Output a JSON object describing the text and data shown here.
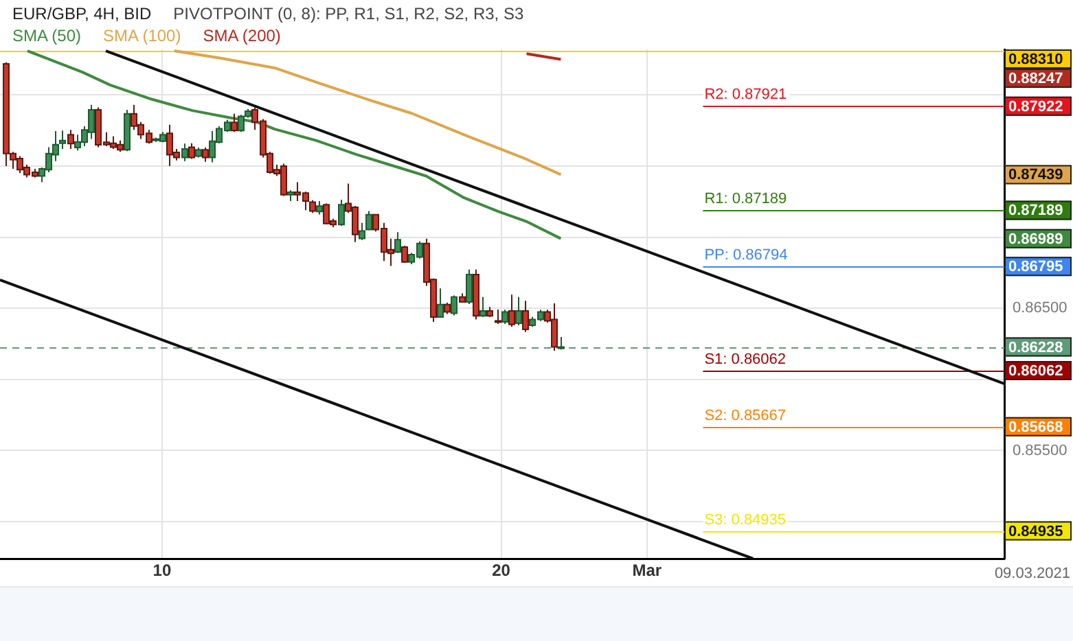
{
  "chart_data": {
    "type": "candlestick",
    "title": "EUR/GBP, 4H, BID",
    "subtitle": "PIVOTPOINT (0, 8): PP, R1, S1, R2, S2, R3, S3",
    "x": [
      5.38,
      5.59,
      5.8,
      6.01,
      6.22,
      6.43,
      6.64,
      6.85,
      7.06,
      7.27,
      7.48,
      7.69,
      7.9,
      8.11,
      8.32,
      8.53,
      8.74,
      8.95,
      9.16,
      9.37,
      9.58,
      9.79,
      10.0,
      10.21,
      10.42,
      10.63,
      10.84,
      11.05,
      11.26,
      11.47,
      11.68,
      11.89,
      12.1,
      12.31,
      12.52,
      12.73,
      12.94,
      13.15,
      13.36,
      13.57,
      13.78,
      13.99,
      14.2,
      14.41,
      14.62,
      14.83,
      15.04,
      15.25,
      15.46,
      15.67,
      15.88,
      16.09,
      16.3,
      16.51,
      16.72,
      16.93,
      17.14,
      17.35,
      17.56,
      17.77,
      17.98,
      18.19,
      18.4,
      18.61,
      18.82,
      19.03,
      19.24,
      19.45,
      19.66,
      19.87,
      20.08,
      20.29,
      20.5,
      20.71,
      20.92,
      21.13,
      21.34,
      21.55,
      21.76
    ],
    "ohlc": [
      [
        0.88219,
        0.8823,
        0.875,
        0.87588
      ],
      [
        0.87588,
        0.876,
        0.8748,
        0.87544
      ],
      [
        0.87553,
        0.8757,
        0.8745,
        0.87474
      ],
      [
        0.8749,
        0.8751,
        0.8742,
        0.8744
      ],
      [
        0.87456,
        0.8748,
        0.8742,
        0.8743
      ],
      [
        0.8743,
        0.8749,
        0.87386,
        0.8748
      ],
      [
        0.87474,
        0.87632,
        0.87456,
        0.87588
      ],
      [
        0.87579,
        0.87746,
        0.87535,
        0.8765
      ],
      [
        0.8766,
        0.8775,
        0.8762,
        0.8768
      ],
      [
        0.8772,
        0.87754,
        0.8762,
        0.87658
      ],
      [
        0.8763,
        0.8772,
        0.8761,
        0.8767
      ],
      [
        0.87667,
        0.8778,
        0.8764,
        0.87754
      ],
      [
        0.87737,
        0.8793,
        0.8769,
        0.87895
      ],
      [
        0.87895,
        0.87912,
        0.87632,
        0.87649
      ],
      [
        0.87667,
        0.87737,
        0.8764,
        0.8765
      ],
      [
        0.8766,
        0.8771,
        0.8762,
        0.87632
      ],
      [
        0.8765,
        0.8768,
        0.876,
        0.87614
      ],
      [
        0.87614,
        0.87895,
        0.87605,
        0.87868
      ],
      [
        0.87868,
        0.8793,
        0.87754,
        0.87781
      ],
      [
        0.8779,
        0.8781,
        0.8769,
        0.8772
      ],
      [
        0.8773,
        0.87754,
        0.87658,
        0.87667
      ],
      [
        0.87684,
        0.877,
        0.8767,
        0.8769
      ],
      [
        0.87675,
        0.8774,
        0.87667,
        0.8772
      ],
      [
        0.8773,
        0.8779,
        0.875,
        0.87579
      ],
      [
        0.87596,
        0.8762,
        0.8754,
        0.8756
      ],
      [
        0.8756,
        0.87658,
        0.87535,
        0.8762
      ],
      [
        0.87632,
        0.8766,
        0.8755,
        0.8756
      ],
      [
        0.8757,
        0.8763,
        0.8756,
        0.87614
      ],
      [
        0.87614,
        0.8763,
        0.8753,
        0.8756
      ],
      [
        0.8756,
        0.87746,
        0.87526,
        0.87675
      ],
      [
        0.87667,
        0.8778,
        0.8766,
        0.87763
      ],
      [
        0.8775,
        0.87825,
        0.8774,
        0.87807
      ],
      [
        0.87807,
        0.87868,
        0.8774,
        0.8775
      ],
      [
        0.8775,
        0.8786,
        0.8774,
        0.8785
      ],
      [
        0.8785,
        0.879,
        0.8784,
        0.87886
      ],
      [
        0.87895,
        0.87912,
        0.87754,
        0.87807
      ],
      [
        0.87816,
        0.8783,
        0.8756,
        0.87579
      ],
      [
        0.87588,
        0.876,
        0.87447,
        0.87456
      ],
      [
        0.87474,
        0.87509,
        0.8743,
        0.87447
      ],
      [
        0.875,
        0.87517,
        0.8729,
        0.87298
      ],
      [
        0.87298,
        0.8733,
        0.87254,
        0.87316
      ],
      [
        0.87316,
        0.87386,
        0.87254,
        0.87298
      ],
      [
        0.8731,
        0.8732,
        0.8719,
        0.87254
      ],
      [
        0.87246,
        0.8726,
        0.8717,
        0.87184
      ],
      [
        0.8718,
        0.87254,
        0.8716,
        0.87219
      ],
      [
        0.87228,
        0.87237,
        0.8709,
        0.87096
      ],
      [
        0.87114,
        0.8713,
        0.8707,
        0.87088
      ],
      [
        0.87088,
        0.87263,
        0.8708,
        0.87228
      ],
      [
        0.87237,
        0.87377,
        0.8717,
        0.87184
      ],
      [
        0.8721,
        0.8722,
        0.86965,
        0.87018
      ],
      [
        0.86991,
        0.871,
        0.8698,
        0.87044
      ],
      [
        0.87053,
        0.87184,
        0.8705,
        0.87158
      ],
      [
        0.87158,
        0.8716,
        0.8704,
        0.87053
      ],
      [
        0.87061,
        0.871,
        0.86833,
        0.86895
      ],
      [
        0.86912,
        0.8699,
        0.86798,
        0.86886
      ],
      [
        0.86895,
        0.87035,
        0.8689,
        0.86982
      ],
      [
        0.8693,
        0.8694,
        0.8682,
        0.86825
      ],
      [
        0.86825,
        0.8689,
        0.8681,
        0.86877
      ],
      [
        0.8686,
        0.8697,
        0.8685,
        0.86956
      ],
      [
        0.86956,
        0.8699,
        0.86658,
        0.86684
      ],
      [
        0.86702,
        0.8671,
        0.86404,
        0.86438
      ],
      [
        0.86438,
        0.8664,
        0.86438,
        0.86526
      ],
      [
        0.86526,
        0.8654,
        0.8646,
        0.86474
      ],
      [
        0.86465,
        0.8659,
        0.8645,
        0.86579
      ],
      [
        0.86579,
        0.86605,
        0.8654,
        0.86544
      ],
      [
        0.86544,
        0.86772,
        0.8653,
        0.86737
      ],
      [
        0.86737,
        0.86772,
        0.86421,
        0.86447
      ],
      [
        0.86447,
        0.86579,
        0.8644,
        0.86482
      ],
      [
        0.86482,
        0.86509,
        0.86438,
        0.86447
      ],
      [
        0.86412,
        0.86491,
        0.8639,
        0.86404
      ],
      [
        0.86404,
        0.8649,
        0.8639,
        0.86474
      ],
      [
        0.86482,
        0.86596,
        0.8637,
        0.86386
      ],
      [
        0.86395,
        0.86579,
        0.8638,
        0.86482
      ],
      [
        0.86482,
        0.86553,
        0.86333,
        0.86351
      ],
      [
        0.8638,
        0.8644,
        0.8637,
        0.86421
      ],
      [
        0.86421,
        0.8649,
        0.8641,
        0.86474
      ],
      [
        0.86474,
        0.8649,
        0.864,
        0.86412
      ],
      [
        0.86421,
        0.86535,
        0.86202,
        0.86228
      ],
      [
        0.86219,
        0.86298,
        0.8621,
        0.86228
      ]
    ],
    "series": [
      {
        "type": "line",
        "name": "SMA (50)",
        "color": "#3f8a3f",
        "x": [
          6.03,
          7.65,
          8.47,
          9.69,
          10.9,
          12.0,
          12.79,
          13.32,
          14.54,
          15.75,
          16.97,
          17.79,
          18.88,
          19.93,
          20.75,
          21.76
        ],
        "values": [
          0.8831,
          0.8816,
          0.8807,
          0.8797,
          0.8789,
          0.8784,
          0.8781,
          0.8776,
          0.8768,
          0.8758,
          0.8749,
          0.8743,
          0.8728,
          0.8718,
          0.8711,
          0.8699
        ]
      },
      {
        "type": "line",
        "name": "SMA (100)",
        "color": "#e0a548",
        "x": [
          10.36,
          11.7,
          13.32,
          14.54,
          16.17,
          17.37,
          19.01,
          20.63,
          21.76
        ],
        "values": [
          0.8831,
          0.8826,
          0.8819,
          0.8809,
          0.8796,
          0.8787,
          0.8771,
          0.8756,
          0.8744
        ]
      },
      {
        "type": "line",
        "name": "SMA (200)",
        "color": "#b22a1e",
        "x": [
          20.75,
          21.76
        ],
        "values": [
          0.8829,
          0.8825
        ]
      },
      {
        "type": "line",
        "color": "#111111",
        "x": [
          8.34,
          34.84
        ],
        "values": [
          0.8831,
          0.8597
        ]
      },
      {
        "type": "line",
        "color": "#111111",
        "x": [
          5.22,
          27.43
        ],
        "values": [
          0.867,
          0.8474
        ]
      }
    ],
    "xlim": [
      5.22,
      34.84
    ],
    "xticks": [
      10,
      20,
      {
        "value": 24.3,
        "label": "Mar"
      }
    ],
    "ylim": [
      0.8474,
      0.8832
    ],
    "yticks": [
      {
        "value": 0.85,
        "label": null
      },
      {
        "value": 0.855,
        "label": "0.85500"
      },
      {
        "value": 0.86,
        "label": null
      },
      {
        "value": 0.865,
        "label": "0.86500"
      },
      {
        "value": 0.87,
        "label": null
      },
      {
        "value": 0.875,
        "label": null
      },
      {
        "value": 0.88,
        "label": null
      }
    ],
    "grid": true,
    "legend": "top left",
    "ref_lines": [
      {
        "axis": "y",
        "value": 0.8831,
        "color": "#ffcc00"
      },
      {
        "axis": "y",
        "value": 0.87921,
        "label": "R2: 0.87921",
        "color": "#e8121a"
      },
      {
        "axis": "y",
        "value": 0.87189,
        "label": "R1: 0.87189",
        "color": "#2e7d0e"
      },
      {
        "axis": "y",
        "value": 0.86794,
        "label": "PP: 0.86794",
        "color": "#3d85f0"
      },
      {
        "axis": "y",
        "value": 0.86228,
        "color": "#5d9c76",
        "line_style": "dashed"
      },
      {
        "axis": "y",
        "value": 0.86062,
        "label": "S1: 0.86062",
        "color": "#a00000"
      },
      {
        "axis": "y",
        "value": 0.85667,
        "label": "S2: 0.85667",
        "color": "#ff8000"
      },
      {
        "axis": "y",
        "value": 0.84935,
        "label": "S3: 0.84935",
        "color": "#f2e600"
      }
    ],
    "annotations": [
      "0.88310",
      "0.88247",
      "0.87922",
      "0.87439",
      "0.87189",
      "0.86989",
      "0.86795",
      "0.86228",
      "0.86062",
      "0.85668",
      "0.84935",
      "09.03.2021"
    ]
  }
}
